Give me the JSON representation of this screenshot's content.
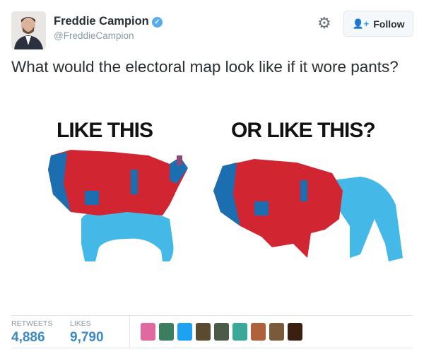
{
  "author": {
    "name": "Freddie Campion",
    "handle": "@FreddieCampion",
    "verified": true
  },
  "actions": {
    "settings_icon": "gear-icon",
    "follow_label": "Follow"
  },
  "tweet": {
    "text": "What would the electoral map look like if it wore pants?"
  },
  "media": {
    "left_caption": "LIKE THIS",
    "right_caption": "OR LIKE THIS?",
    "colors": {
      "red": "#d22532",
      "blue": "#1b6fb0",
      "pants": "#44b8e6"
    }
  },
  "stats": {
    "retweets_label": "RETWEETS",
    "retweets": "4,886",
    "likes_label": "LIKES",
    "likes": "9,790"
  },
  "likers": [
    "#e06aa0",
    "#3c7f60",
    "#1da1f2",
    "#5a4a30",
    "#4c5a48",
    "#3aa99a",
    "#b0603a",
    "#7a5a3a",
    "#3a2010"
  ]
}
